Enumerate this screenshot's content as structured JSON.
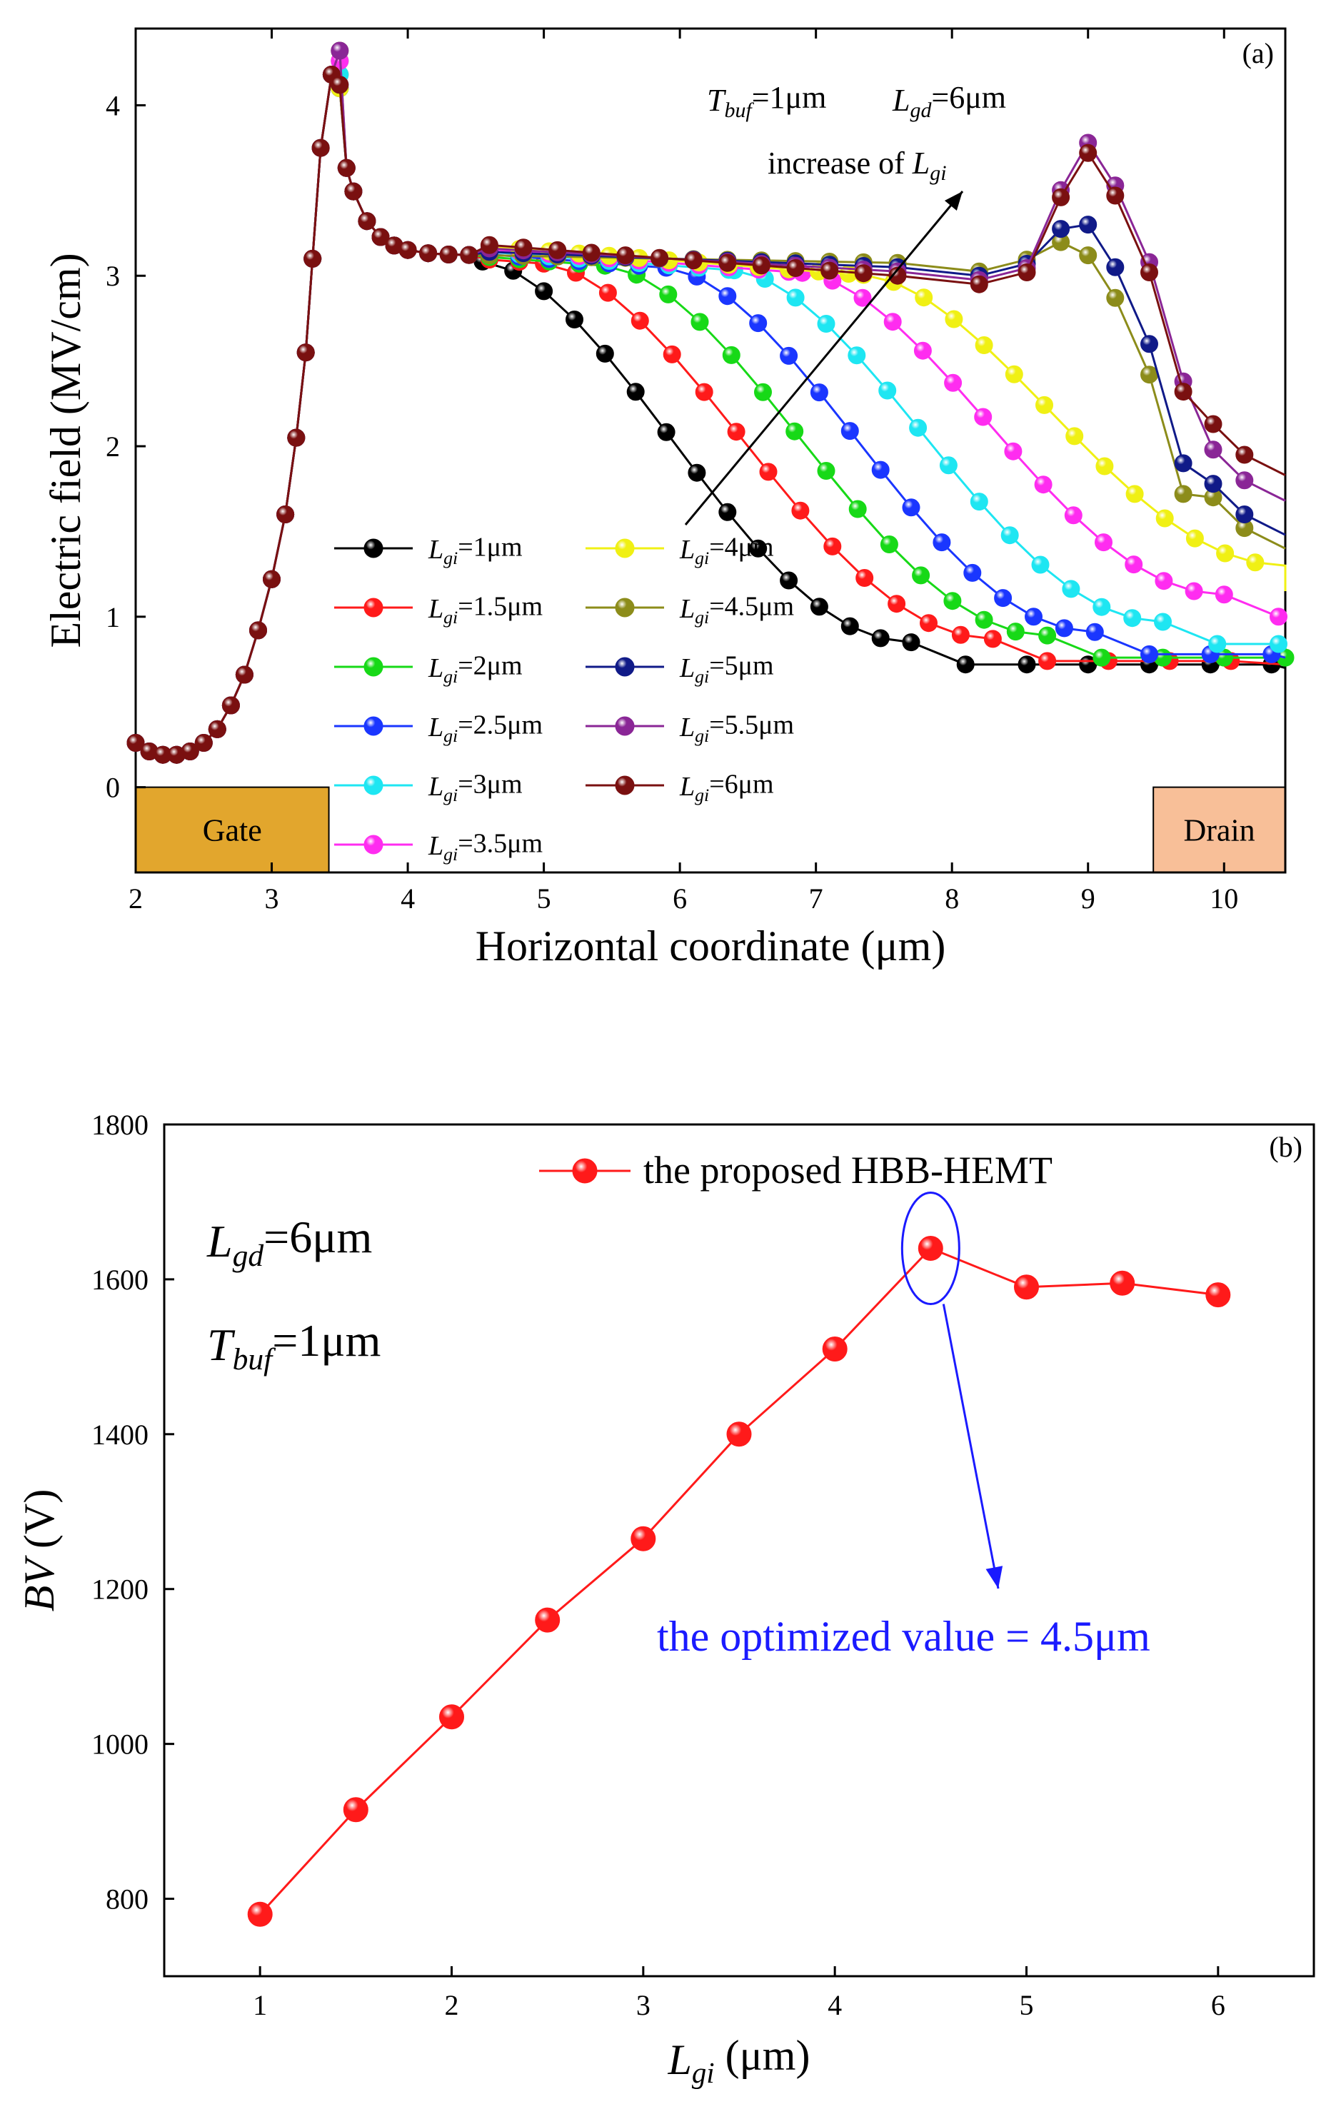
{
  "chart_data": [
    {
      "type": "line",
      "panel_label": "(a)",
      "xlabel": "Horizontal coordinate (μm)",
      "ylabel": "Electric field (MV/cm)",
      "xlim": [
        2,
        10.45
      ],
      "ylim": [
        -0.5,
        4.45
      ],
      "xticks": [
        "2",
        "3",
        "4",
        "5",
        "6",
        "7",
        "8",
        "9",
        "10"
      ],
      "yticks": [
        "0",
        "1",
        "2",
        "3",
        "4"
      ],
      "annotations": {
        "params_tbuf_sym": "T",
        "params_tbuf_sub": "buf",
        "params_tbuf_val": "=1μm",
        "params_lgd_sym": "L",
        "params_lgd_sub": "gd",
        "params_lgd_val": "=6μm",
        "increase_text": "increase of ",
        "increase_sym": "L",
        "increase_sub": "gi"
      },
      "regions": [
        {
          "label": "Gate",
          "x0": 2.0,
          "x1": 3.42,
          "color": "#e2a62d"
        },
        {
          "label": "Drain",
          "x0": 9.48,
          "x1": 10.45,
          "color": "#f8bf98"
        }
      ],
      "legend_prefix": "L",
      "legend_sub": "gi",
      "series": [
        {
          "name": "=1μm",
          "color": "#000000",
          "flat_x": 4.55,
          "end_x": 7.7,
          "low": 0.7
        },
        {
          "name": "=1.5μm",
          "color": "#ff1a1a",
          "flat_x": 5.0,
          "end_x": 8.3,
          "low": 0.72
        },
        {
          "name": "=2μm",
          "color": "#17d917",
          "flat_x": 5.45,
          "end_x": 8.7,
          "low": 0.74
        },
        {
          "name": "=2.5μm",
          "color": "#1a36ff",
          "flat_x": 5.9,
          "end_x": 9.05,
          "low": 0.76
        },
        {
          "name": "=3μm",
          "color": "#1ee6f2",
          "flat_x": 6.4,
          "end_x": 9.55,
          "low": 0.82
        },
        {
          "name": "=3.5μm",
          "color": "#ff2cf0",
          "flat_x": 6.9,
          "end_x": 10.0,
          "low": 0.98
        },
        {
          "name": "=4μm",
          "color": "#f0f014",
          "flat_x": 7.35,
          "end_x": 10.45,
          "low": 1.15
        },
        {
          "name": "=4.5μm",
          "color": "#8c8c1a",
          "peak2": 3.12,
          "end": 1.4
        },
        {
          "name": "=5μm",
          "color": "#101a88",
          "peak2": 3.3,
          "end": 1.48
        },
        {
          "name": "=5.5μm",
          "color": "#8a2696",
          "peak2": 3.78,
          "end": 1.68
        },
        {
          "name": "=6μm",
          "color": "#7a1010",
          "peak2": 3.72,
          "end": 1.83
        }
      ]
    },
    {
      "type": "line",
      "panel_label": "(b)",
      "xlabel_sym": "L",
      "xlabel_sub": "gi",
      "xlabel_rest": " (μm)",
      "ylabel_sym": "BV",
      "ylabel_rest": " (V)",
      "xlim": [
        0.5,
        6.5
      ],
      "ylim": [
        700,
        1800
      ],
      "xticks": [
        "1",
        "2",
        "3",
        "4",
        "5",
        "6"
      ],
      "yticks": [
        "800",
        "1000",
        "1200",
        "1400",
        "1600",
        "1800"
      ],
      "series": [
        {
          "name": "the proposed HBB-HEMT",
          "color": "#ff1a1a",
          "x": [
            1,
            1.5,
            2,
            2.5,
            3,
            3.5,
            4,
            4.5,
            5,
            5.5,
            6
          ],
          "y": [
            780,
            915,
            1035,
            1160,
            1265,
            1400,
            1510,
            1640,
            1590,
            1595,
            1580
          ]
        }
      ],
      "annotations": {
        "lgd_sym": "L",
        "lgd_sub": "gd",
        "lgd_val": "=6μm",
        "tbuf_sym": "T",
        "tbuf_sub": "buf",
        "tbuf_val": "=1μm",
        "optimized": "the optimized value = 4.5μm"
      }
    }
  ]
}
